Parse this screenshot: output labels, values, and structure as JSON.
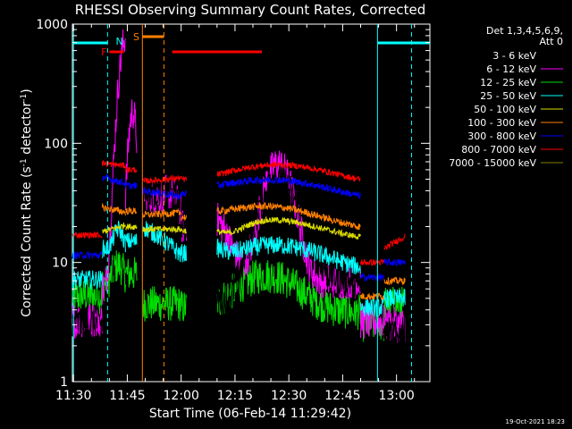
{
  "chart_data": {
    "type": "line",
    "title": "RHESSI Observing Summary Count Rates, Corrected",
    "xlabel": "Start Time (06-Feb-14 11:29:42)",
    "ylabel_main": "Corrected Count Rate (s",
    "ylabel_sup1": "-1",
    "ylabel_mid": " detector",
    "ylabel_sup2": "-1",
    "ylabel_end": ")",
    "yscale": "log",
    "ylim": [
      1,
      1000
    ],
    "xlim": [
      "11:30",
      "13:09"
    ],
    "x_tick_labels": [
      "11:30",
      "11:45",
      "12:00",
      "12:15",
      "12:30",
      "12:45",
      "13:00"
    ],
    "x_tick_minutes": [
      0,
      15,
      30,
      45,
      60,
      75,
      90
    ],
    "y_tick_labels": [
      "1",
      "10",
      "100",
      "1000"
    ],
    "y_tick_values": [
      1,
      10,
      100,
      1000
    ],
    "legend_header_1": "Det 1,3,4,5,6,9,",
    "legend_header_2": "Att 0",
    "series": [
      {
        "name": "3 - 6 keV",
        "color": "#000000"
      },
      {
        "name": "6 - 12 keV",
        "color": "#ff00ff"
      },
      {
        "name": "12 - 25 keV",
        "color": "#00dd00"
      },
      {
        "name": "25 - 50 keV",
        "color": "#00ffff"
      },
      {
        "name": "50 - 100 keV",
        "color": "#dddd00"
      },
      {
        "name": "100 - 300 keV",
        "color": "#ff8000"
      },
      {
        "name": "300 - 800 keV",
        "color": "#0000ff"
      },
      {
        "name": "800 - 7000 keV",
        "color": "#ff0000"
      },
      {
        "name": "7000 - 15000 keV",
        "color": "#808000"
      }
    ],
    "annotations": {
      "flare_label": "F",
      "night_label": "N",
      "saa_label": "S",
      "timestamp": "19-Oct-2021 18:23"
    }
  }
}
